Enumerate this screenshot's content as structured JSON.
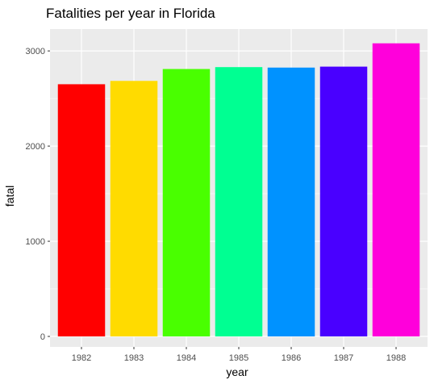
{
  "chart_data": {
    "type": "bar",
    "title": "Fatalities per year in Florida",
    "xlabel": "year",
    "ylabel": "fatal",
    "categories": [
      "1982",
      "1983",
      "1984",
      "1985",
      "1986",
      "1987",
      "1988"
    ],
    "values": [
      2650,
      2685,
      2810,
      2830,
      2825,
      2835,
      3080
    ],
    "colors": [
      "#FF0000",
      "#FFDB00",
      "#49FF00",
      "#00FF92",
      "#0092FF",
      "#4900FF",
      "#FF00DB"
    ],
    "ylim": [
      -110,
      3230
    ],
    "yticks": [
      0,
      1000,
      2000,
      3000
    ],
    "ytick_labels": [
      "0",
      "1000",
      "2000",
      "3000"
    ],
    "grid": true,
    "panel_background": "#EBEBEB",
    "grid_color": "#FFFFFF"
  }
}
